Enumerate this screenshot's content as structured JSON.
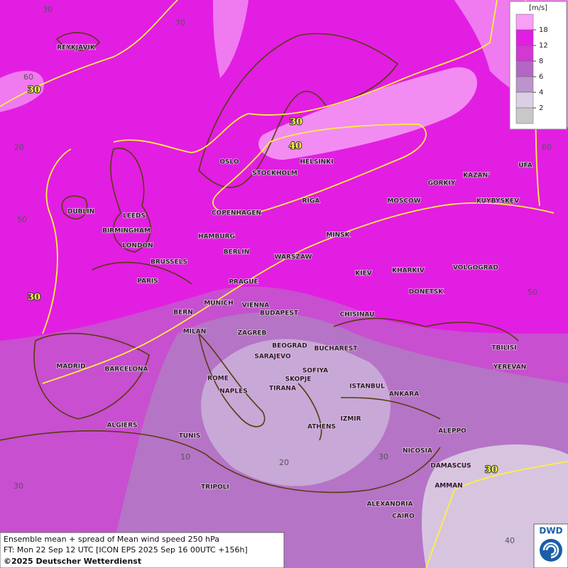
{
  "legend": {
    "unit": "[m/s]",
    "levels": [
      18,
      12,
      8,
      6,
      4,
      2
    ],
    "colors": [
      "#f7a0f7",
      "#e21ee2",
      "#d238d2",
      "#b366c4",
      "#bb94cc",
      "#dccfe3",
      "#c8c8c8"
    ]
  },
  "footer": {
    "line1": "Ensemble mean + spread of Mean wind speed 250 hPa",
    "line2": "FT: Mon 22 Sep 12 UTC [ICON EPS 2025 Sep 16 00UTC +156h]",
    "copyright": "©2025 Deutscher Wetterdienst"
  },
  "logo": "DWD",
  "cities": [
    "REYKJAVIK",
    "OSLO",
    "STOCKHOLM",
    "HELSINKI",
    "DUBLIN",
    "LEEDS",
    "COPENHAGEN",
    "RIGA",
    "MOSCOW",
    "GORKIY",
    "KAZAN'",
    "UFA",
    "KUYBYSKEV",
    "BIRMINGHAM",
    "LONDON",
    "HAMBURG",
    "BERLIN",
    "MINSK",
    "WARSZAW",
    "BRUSSELS",
    "PARIS",
    "KIEV",
    "KHARKIV",
    "VOLGOGRAD",
    "PRAGUE",
    "DONETSK",
    "MUNICH",
    "VIENNA",
    "BERN",
    "BUDAPEST",
    "CHISINAU",
    "MILAN",
    "ZAGREB",
    "BEOGRAD",
    "BUCHAREST",
    "TBILISI",
    "MADRID",
    "BARCELONA",
    "SARAJEVO",
    "SOFIYA",
    "YEREVAN",
    "ROME",
    "SKOPJE",
    "ISTANBUL",
    "TIRANA",
    "NAPLES",
    "ANKARA",
    "ALGIERS",
    "IZMIR",
    "ATHENS",
    "ALEPPO",
    "TUNIS",
    "NICOSIA",
    "DAMASCUS",
    "TRIPOLI",
    "AMMAN",
    "ALEXANDRIA",
    "CAIRO"
  ],
  "grid_labels": [
    30,
    70,
    60,
    20,
    50,
    60,
    50,
    10,
    20,
    30,
    30,
    40
  ],
  "contour_labels": [
    30,
    30,
    40,
    30,
    30
  ]
}
